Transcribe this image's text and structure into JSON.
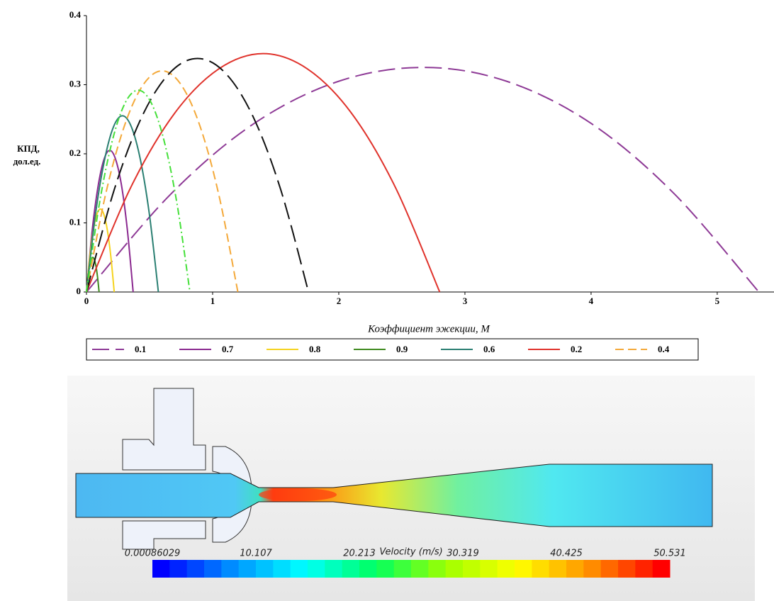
{
  "chart_data": {
    "type": "line",
    "xlabel": "Коэффициент эжекции, M",
    "ylabel": [
      "КПД,",
      "дол.ед."
    ],
    "xlim": [
      0,
      5.45
    ],
    "ylim": [
      0,
      0.4
    ],
    "xticks": [
      0,
      1,
      2,
      3,
      4,
      5
    ],
    "yticks": [
      0,
      0.1,
      0.2,
      0.3,
      0.4
    ],
    "series": [
      {
        "name": "0.1",
        "color": "#8e3a96",
        "dash": "longdash",
        "x": [
          0,
          0.67,
          1.33,
          2.0,
          2.67,
          3.33,
          4.0,
          4.66,
          5.33
        ],
        "values": [
          0,
          0.142,
          0.244,
          0.305,
          0.325,
          0.305,
          0.244,
          0.142,
          0
        ]
      },
      {
        "name": "0.7",
        "color": "#8b2a90",
        "dash": "solid",
        "x": [
          0,
          0.046,
          0.093,
          0.139,
          0.185,
          0.231,
          0.278,
          0.324,
          0.37
        ],
        "values": [
          0,
          0.09,
          0.154,
          0.192,
          0.205,
          0.192,
          0.154,
          0.09,
          0
        ]
      },
      {
        "name": "0.8",
        "color": "#f5d31f",
        "dash": "solid",
        "x": [
          0,
          0.0275,
          0.055,
          0.0825,
          0.11,
          0.1375,
          0.165,
          0.1925,
          0.22
        ],
        "values": [
          0,
          0.0525,
          0.09,
          0.1125,
          0.12,
          0.1125,
          0.09,
          0.0525,
          0
        ]
      },
      {
        "name": "0.9",
        "color": "#3f8a1f",
        "dash": "solid",
        "x": [
          0,
          0.0125,
          0.025,
          0.0375,
          0.05,
          0.0625,
          0.075,
          0.0875,
          0.1
        ],
        "values": [
          0,
          0.022,
          0.0375,
          0.047,
          0.05,
          0.047,
          0.0375,
          0.022,
          0
        ]
      },
      {
        "name": "0.6",
        "color": "#2a7f72",
        "dash": "solid",
        "x": [
          0,
          0.071,
          0.143,
          0.214,
          0.285,
          0.356,
          0.428,
          0.499,
          0.57
        ],
        "values": [
          0,
          0.112,
          0.191,
          0.239,
          0.255,
          0.239,
          0.191,
          0.112,
          0
        ]
      },
      {
        "name": "0.2",
        "color": "#e0332c",
        "dash": "solid",
        "x": [
          0,
          0.35,
          0.7,
          1.05,
          1.4,
          1.75,
          2.1,
          2.45,
          2.8
        ],
        "values": [
          0,
          0.151,
          0.259,
          0.323,
          0.345,
          0.323,
          0.259,
          0.151,
          0
        ]
      },
      {
        "name": "0.4",
        "color": "#f4a93a",
        "dash": "dash",
        "x": [
          0,
          0.15,
          0.3,
          0.45,
          0.6,
          0.75,
          0.9,
          1.05,
          1.2
        ],
        "values": [
          0,
          0.14,
          0.24,
          0.3,
          0.32,
          0.3,
          0.24,
          0.14,
          0
        ]
      },
      {
        "color": "#111111",
        "dash": "longdash",
        "x": [
          0,
          0.22,
          0.44,
          0.66,
          0.88,
          1.1,
          1.32,
          1.54,
          1.76
        ],
        "values": [
          0,
          0.148,
          0.254,
          0.317,
          0.338,
          0.317,
          0.254,
          0.148,
          0
        ]
      },
      {
        "color": "#45e03a",
        "dash": "dashdot",
        "x": [
          0,
          0.1025,
          0.205,
          0.3075,
          0.41,
          0.5125,
          0.615,
          0.7175,
          0.82
        ],
        "values": [
          0,
          0.128,
          0.219,
          0.274,
          0.292,
          0.274,
          0.219,
          0.128,
          0
        ]
      }
    ]
  },
  "colorbar": {
    "title": "Velocity (m/s)",
    "lim": [
      0.00086029,
      50.531
    ],
    "ticks": [
      0.00086029,
      10.107,
      20.213,
      30.319,
      40.425,
      50.531
    ],
    "colormap": [
      "#0000ff",
      "#0090ff",
      "#00ffff",
      "#00ff60",
      "#a0ff00",
      "#ffff00",
      "#ff9000",
      "#ff0000"
    ],
    "steps": 30
  }
}
